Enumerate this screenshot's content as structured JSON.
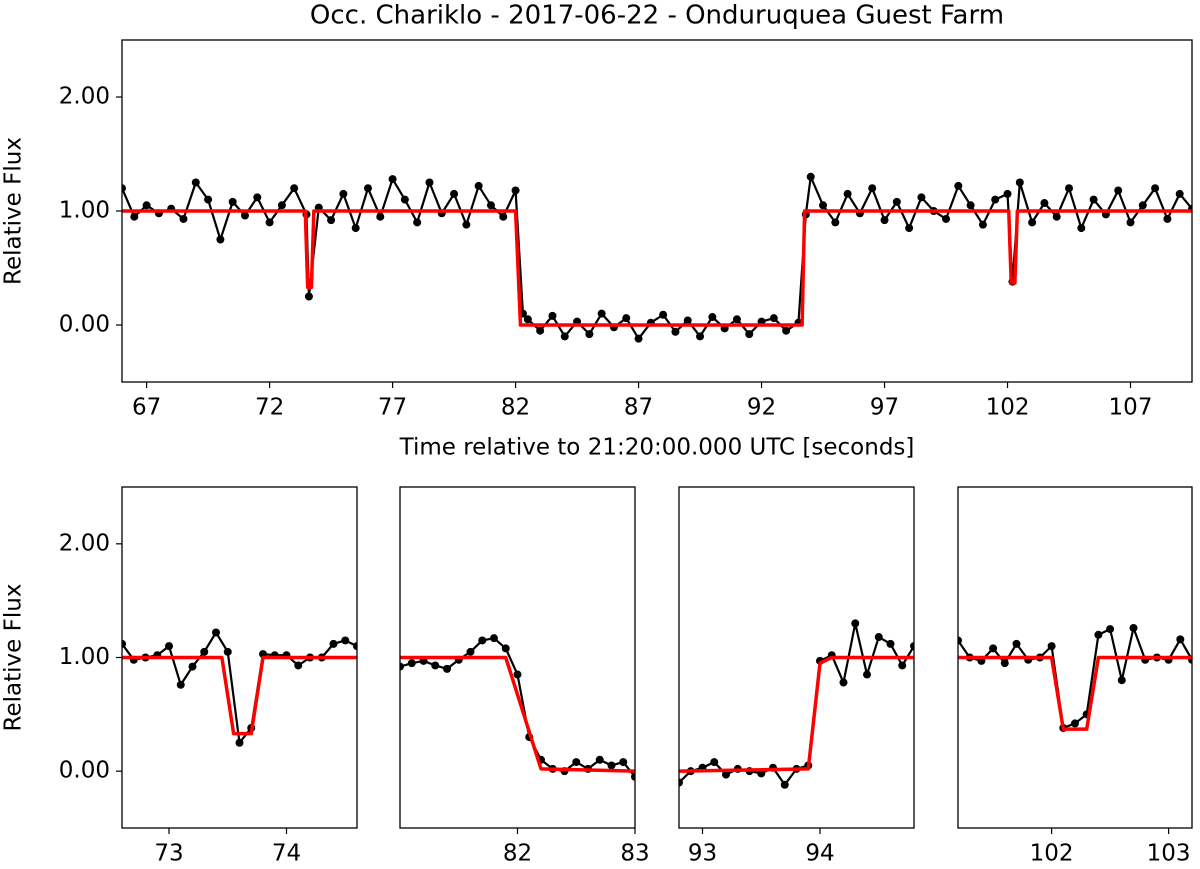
{
  "chart_data": [
    {
      "type": "line",
      "title": "Occ. Chariklo - 2017-06-22 - Onduruquea Guest Farm",
      "x_label": "Time relative to 21:20:00.000 UTC [seconds]",
      "y_label": "Relative Flux",
      "xlim": [
        66,
        109.5
      ],
      "ylim": [
        -0.5,
        2.5
      ],
      "xticks": [
        67,
        72,
        77,
        82,
        87,
        92,
        97,
        102,
        107
      ],
      "yticks": [
        {
          "value": 0,
          "label": "0.00"
        },
        {
          "value": 1,
          "label": "1.00"
        },
        {
          "value": 2,
          "label": "2.00"
        }
      ],
      "series": [
        {
          "color": "#000000",
          "marker": true,
          "x": [
            66,
            66.5,
            67,
            67.5,
            68,
            68.5,
            69,
            69.5,
            70,
            70.5,
            71,
            71.5,
            72,
            72.5,
            73,
            73.5,
            73.6,
            74,
            74.5,
            75,
            75.5,
            76,
            76.5,
            77,
            77.5,
            78,
            78.5,
            79,
            79.5,
            80,
            80.5,
            81,
            81.5,
            82,
            82.3,
            82.5,
            83,
            83.5,
            84,
            84.5,
            85,
            85.5,
            86,
            86.5,
            87,
            87.5,
            88,
            88.5,
            89,
            89.5,
            90,
            90.5,
            91,
            91.5,
            92,
            92.5,
            93,
            93.5,
            93.8,
            94,
            94.5,
            95,
            95.5,
            96,
            96.5,
            97,
            97.5,
            98,
            98.5,
            99,
            99.5,
            100,
            100.5,
            101,
            101.5,
            102,
            102.2,
            102.5,
            103,
            103.5,
            104,
            104.5,
            105,
            105.5,
            106,
            106.5,
            107,
            107.5,
            108,
            108.5,
            109,
            109.5
          ],
          "values": [
            1.2,
            0.95,
            1.05,
            0.98,
            1.02,
            0.93,
            1.25,
            1.1,
            0.75,
            1.08,
            0.96,
            1.12,
            0.9,
            1.05,
            1.2,
            0.97,
            0.25,
            1.03,
            0.92,
            1.15,
            0.85,
            1.2,
            0.95,
            1.28,
            1.1,
            0.9,
            1.25,
            0.98,
            1.15,
            0.88,
            1.22,
            1.05,
            0.95,
            1.18,
            0.1,
            0.05,
            -0.05,
            0.08,
            -0.1,
            0.03,
            -0.08,
            0.1,
            -0.02,
            0.06,
            -0.12,
            0.02,
            0.09,
            -0.06,
            0.04,
            -0.1,
            0.07,
            -0.03,
            0.05,
            -0.08,
            0.03,
            0.06,
            -0.05,
            0.02,
            0.97,
            1.3,
            1.05,
            0.9,
            1.15,
            0.98,
            1.2,
            0.92,
            1.08,
            0.85,
            1.12,
            1.0,
            0.93,
            1.22,
            1.05,
            0.88,
            1.1,
            1.15,
            0.38,
            1.25,
            0.9,
            1.07,
            0.95,
            1.2,
            0.85,
            1.1,
            0.97,
            1.18,
            0.9,
            1.05,
            1.2,
            0.93,
            1.15,
            1.02
          ]
        },
        {
          "color": "#ff0000",
          "marker": false,
          "x": [
            66,
            73.45,
            73.55,
            73.7,
            73.8,
            82,
            82.2,
            93.65,
            93.75,
            102.05,
            102.15,
            102.3,
            102.4,
            109.5
          ],
          "values": [
            1,
            1,
            0.33,
            0.33,
            1,
            1,
            0,
            0,
            1,
            1,
            0.37,
            0.37,
            1,
            1
          ]
        }
      ]
    },
    {
      "type": "line",
      "y_label": "Relative Flux",
      "xlim": [
        72.6,
        74.6
      ],
      "ylim": [
        -0.5,
        2.5
      ],
      "xticks": [
        73,
        74
      ],
      "yticks": [
        {
          "value": 0,
          "label": "0.00"
        },
        {
          "value": 1,
          "label": "1.00"
        },
        {
          "value": 2,
          "label": "2.00"
        }
      ],
      "series": [
        {
          "color": "#000000",
          "marker": true,
          "x": [
            72.6,
            72.7,
            72.8,
            72.9,
            73.0,
            73.1,
            73.2,
            73.3,
            73.4,
            73.5,
            73.6,
            73.7,
            73.8,
            73.9,
            74.0,
            74.1,
            74.2,
            74.3,
            74.4,
            74.5,
            74.6
          ],
          "values": [
            1.12,
            0.98,
            1.0,
            1.02,
            1.1,
            0.76,
            0.92,
            1.05,
            1.22,
            1.05,
            0.25,
            0.38,
            1.03,
            1.02,
            1.02,
            0.93,
            1.0,
            1.0,
            1.12,
            1.15,
            1.1
          ]
        },
        {
          "color": "#ff0000",
          "marker": false,
          "x": [
            72.6,
            73.45,
            73.55,
            73.7,
            73.8,
            74.6
          ],
          "values": [
            1,
            1,
            0.33,
            0.33,
            1,
            1
          ]
        }
      ]
    },
    {
      "type": "line",
      "xlim": [
        81,
        83
      ],
      "ylim": [
        -0.5,
        2.5
      ],
      "xticks": [
        82,
        83
      ],
      "series": [
        {
          "color": "#000000",
          "marker": true,
          "x": [
            81.0,
            81.1,
            81.2,
            81.3,
            81.4,
            81.5,
            81.6,
            81.7,
            81.8,
            81.9,
            82.0,
            82.1,
            82.2,
            82.3,
            82.4,
            82.5,
            82.6,
            82.7,
            82.8,
            82.9,
            83.0
          ],
          "values": [
            0.92,
            0.95,
            0.97,
            0.93,
            0.9,
            0.98,
            1.05,
            1.15,
            1.17,
            1.08,
            0.85,
            0.3,
            0.1,
            0.02,
            0.0,
            0.08,
            0.02,
            0.1,
            0.05,
            0.08,
            -0.05
          ]
        },
        {
          "color": "#ff0000",
          "marker": false,
          "x": [
            81,
            81.9,
            82.2,
            83
          ],
          "values": [
            1,
            1,
            0.02,
            0
          ]
        }
      ]
    },
    {
      "type": "line",
      "xlim": [
        92.8,
        94.8
      ],
      "ylim": [
        -0.5,
        2.5
      ],
      "xticks": [
        93,
        94
      ],
      "series": [
        {
          "color": "#000000",
          "marker": true,
          "x": [
            92.8,
            92.9,
            93.0,
            93.1,
            93.2,
            93.3,
            93.4,
            93.5,
            93.6,
            93.7,
            93.8,
            93.9,
            94.0,
            94.1,
            94.2,
            94.3,
            94.4,
            94.5,
            94.6,
            94.7,
            94.8
          ],
          "values": [
            -0.1,
            0.0,
            0.03,
            0.08,
            -0.03,
            0.02,
            0.0,
            -0.02,
            0.03,
            -0.12,
            0.02,
            0.05,
            0.97,
            1.02,
            0.78,
            1.3,
            0.85,
            1.18,
            1.12,
            0.93,
            1.1
          ]
        },
        {
          "color": "#ff0000",
          "marker": false,
          "x": [
            92.8,
            93.9,
            94.0,
            94.1,
            94.8
          ],
          "values": [
            0,
            0.02,
            0.95,
            1,
            1
          ]
        }
      ]
    },
    {
      "type": "line",
      "xlim": [
        101.2,
        103.2
      ],
      "ylim": [
        -0.5,
        2.5
      ],
      "xticks": [
        102,
        103
      ],
      "series": [
        {
          "color": "#000000",
          "marker": true,
          "x": [
            101.2,
            101.3,
            101.4,
            101.5,
            101.6,
            101.7,
            101.8,
            101.9,
            102.0,
            102.1,
            102.2,
            102.3,
            102.4,
            102.5,
            102.6,
            102.7,
            102.8,
            102.9,
            103.0,
            103.1,
            103.2
          ],
          "values": [
            1.15,
            1.0,
            0.97,
            1.08,
            0.95,
            1.12,
            0.98,
            1.0,
            1.1,
            0.38,
            0.42,
            0.5,
            1.2,
            1.25,
            0.8,
            1.26,
            0.98,
            1.0,
            0.98,
            1.16,
            0.98
          ]
        },
        {
          "color": "#ff0000",
          "marker": false,
          "x": [
            101.2,
            102.0,
            102.1,
            102.3,
            102.4,
            103.2
          ],
          "values": [
            1,
            1,
            0.37,
            0.37,
            1,
            1
          ]
        }
      ]
    }
  ]
}
